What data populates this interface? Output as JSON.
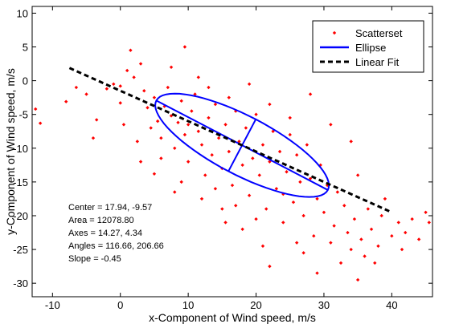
{
  "chart_data": {
    "type": "scatter",
    "xlabel": "x-Component of Wind speed, m/s",
    "ylabel": "y-Component of Wind speed, m/s",
    "xlim": [
      -13,
      46
    ],
    "ylim": [
      -32,
      11
    ],
    "xticks": [
      -10,
      0,
      10,
      20,
      30,
      40
    ],
    "yticks": [
      10,
      5,
      0,
      -5,
      -10,
      -15,
      -20,
      -25,
      -30
    ],
    "grid": false,
    "legend_position": "top-right",
    "legend": [
      "Scatterset",
      "Ellipse",
      "Linear Fit"
    ],
    "annotations": [
      "Center = 17.94, -9.57",
      "Area = 12078.80",
      "Axes = 14.27, 4.34",
      "Angles = 116.66, 206.66",
      "Slope = -0.45"
    ],
    "colors": {
      "scatter": "#ff0000",
      "ellipse": "#0000ff",
      "fit": "#000000"
    },
    "series": [
      {
        "name": "Scatterset",
        "kind": "points",
        "points": [
          [
            -12.5,
            -4.2
          ],
          [
            -11.8,
            -6.3
          ],
          [
            -8.0,
            -3.1
          ],
          [
            -5.0,
            -2.0
          ],
          [
            -3.5,
            -5.8
          ],
          [
            -2.0,
            -1.2
          ],
          [
            -1.0,
            -0.5
          ],
          [
            0.0,
            -3.3
          ],
          [
            0.5,
            -6.5
          ],
          [
            1.0,
            1.5
          ],
          [
            1.5,
            4.5
          ],
          [
            2.0,
            0.5
          ],
          [
            3.0,
            2.5
          ],
          [
            3.5,
            -1.5
          ],
          [
            4.0,
            -4.0
          ],
          [
            4.5,
            -7.0
          ],
          [
            5.0,
            -2.5
          ],
          [
            5.5,
            -6.0
          ],
          [
            6.0,
            -8.5
          ],
          [
            6.5,
            -3.8
          ],
          [
            7.0,
            -1.0
          ],
          [
            7.5,
            -5.2
          ],
          [
            8.0,
            -10.0
          ],
          [
            8.5,
            -6.2
          ],
          [
            9.0,
            -3.0
          ],
          [
            9.5,
            -8.0
          ],
          [
            10.0,
            -12.0
          ],
          [
            10.5,
            -4.5
          ],
          [
            11.0,
            -2.0
          ],
          [
            11.5,
            -7.5
          ],
          [
            12.0,
            -9.5
          ],
          [
            12.5,
            -14.0
          ],
          [
            13.0,
            -5.5
          ],
          [
            13.5,
            -11.0
          ],
          [
            14.0,
            -3.5
          ],
          [
            14.5,
            -8.5
          ],
          [
            15.0,
            -13.0
          ],
          [
            15.5,
            -6.5
          ],
          [
            16.0,
            -10.5
          ],
          [
            16.5,
            -15.5
          ],
          [
            17.0,
            -4.5
          ],
          [
            17.5,
            -9.0
          ],
          [
            18.0,
            -12.5
          ],
          [
            18.5,
            -7.0
          ],
          [
            19.0,
            -17.0
          ],
          [
            19.5,
            -11.5
          ],
          [
            20.0,
            -5.0
          ],
          [
            20.5,
            -14.0
          ],
          [
            21.0,
            -9.5
          ],
          [
            21.5,
            -19.0
          ],
          [
            22.0,
            -12.0
          ],
          [
            22.5,
            -7.5
          ],
          [
            23.0,
            -16.0
          ],
          [
            23.5,
            -10.5
          ],
          [
            24.0,
            -21.0
          ],
          [
            24.5,
            -13.5
          ],
          [
            25.0,
            -8.0
          ],
          [
            25.5,
            -18.0
          ],
          [
            26.0,
            -11.0
          ],
          [
            26.5,
            -15.0
          ],
          [
            27.0,
            -20.0
          ],
          [
            27.5,
            -9.5
          ],
          [
            28.0,
            -14.5
          ],
          [
            28.5,
            -23.0
          ],
          [
            29.0,
            -17.5
          ],
          [
            29.5,
            -12.5
          ],
          [
            30.0,
            -19.5
          ],
          [
            30.5,
            -15.5
          ],
          [
            31.0,
            -24.0
          ],
          [
            31.5,
            -21.5
          ],
          [
            32.0,
            -16.5
          ],
          [
            32.5,
            -27.0
          ],
          [
            33.0,
            -18.5
          ],
          [
            33.5,
            -22.5
          ],
          [
            34.0,
            -25.0
          ],
          [
            34.5,
            -20.5
          ],
          [
            35.0,
            -14.0
          ],
          [
            35.5,
            -23.5
          ],
          [
            36.0,
            -26.0
          ],
          [
            36.5,
            -19.0
          ],
          [
            37.0,
            -22.0
          ],
          [
            38.0,
            -24.5
          ],
          [
            38.5,
            -20.0
          ],
          [
            39.0,
            -17.5
          ],
          [
            40.0,
            -23.0
          ],
          [
            41.0,
            -21.0
          ],
          [
            42.0,
            -22.5
          ],
          [
            43.0,
            -20.5
          ],
          [
            44.0,
            -23.5
          ],
          [
            45.0,
            -19.5
          ],
          [
            45.5,
            -21.0
          ],
          [
            2.5,
            -9.0
          ],
          [
            6.0,
            -11.5
          ],
          [
            9.0,
            -15.0
          ],
          [
            12.0,
            -17.5
          ],
          [
            15.0,
            -19.0
          ],
          [
            18.0,
            -22.0
          ],
          [
            21.0,
            -24.5
          ],
          [
            10.0,
            -6.5
          ],
          [
            13.0,
            -1.0
          ],
          [
            16.0,
            -2.5
          ],
          [
            19.0,
            -0.5
          ],
          [
            22.0,
            -3.5
          ],
          [
            25.0,
            -5.5
          ],
          [
            28.0,
            -2.0
          ],
          [
            31.0,
            -6.5
          ],
          [
            34.0,
            -9.0
          ],
          [
            20.0,
            -20.5
          ],
          [
            24.0,
            -16.8
          ],
          [
            26.0,
            -24.0
          ],
          [
            29.0,
            -28.5
          ],
          [
            35.0,
            -29.5
          ],
          [
            7.5,
            2.0
          ],
          [
            9.5,
            5.0
          ],
          [
            11.5,
            0.5
          ],
          [
            3.0,
            -12.0
          ],
          [
            -4.0,
            -8.5
          ],
          [
            -6.5,
            -1.0
          ],
          [
            0.0,
            -0.8
          ],
          [
            14.0,
            -16.0
          ],
          [
            17.0,
            -18.5
          ],
          [
            22.0,
            -27.5
          ],
          [
            37.5,
            -27.0
          ],
          [
            41.5,
            -25.0
          ],
          [
            8.0,
            -16.5
          ],
          [
            5.0,
            -13.8
          ],
          [
            15.5,
            -21.0
          ],
          [
            27.0,
            -25.5
          ]
        ]
      },
      {
        "name": "Ellipse",
        "kind": "ellipse",
        "center": [
          17.94,
          -9.57
        ],
        "semi_axes": [
          14.27,
          4.34
        ],
        "tilt_slope": -0.524
      },
      {
        "name": "Linear Fit",
        "kind": "line",
        "slope": -0.45,
        "x_range": [
          -7.5,
          40
        ]
      }
    ]
  }
}
